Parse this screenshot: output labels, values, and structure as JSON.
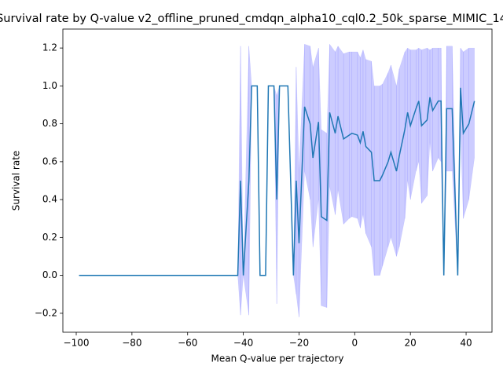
{
  "chart_data": {
    "type": "line",
    "title": "Survival rate by Q-value v2_offline_pruned_cmdqn_alpha10_cql0.2_50k_sparse_MIMIC_14",
    "xlabel": "Mean Q-value per trajectory",
    "ylabel": "Survival rate",
    "xlim": [
      -104.8,
      49.3
    ],
    "ylim": [
      -0.3,
      1.3
    ],
    "xticks": [
      {
        "value": -100,
        "label": "−100"
      },
      {
        "value": -80,
        "label": "−80"
      },
      {
        "value": -60,
        "label": "−60"
      },
      {
        "value": -40,
        "label": "−40"
      },
      {
        "value": -20,
        "label": "−20"
      },
      0,
      20,
      40
    ],
    "yticks": [
      {
        "value": -0.2,
        "label": "−0.2"
      },
      {
        "value": 0,
        "label": "0.0"
      },
      0.2,
      0.4,
      0.6,
      0.8,
      {
        "value": 1,
        "label": "1.0"
      },
      1.2
    ],
    "x": [
      -99,
      -42,
      -41,
      -40,
      -38,
      -37,
      -35,
      -34,
      -32,
      -31,
      -29,
      -28,
      -27,
      -24,
      -22,
      -21,
      -20,
      -18,
      -16,
      -15,
      -13,
      -12,
      -10,
      -9,
      -7,
      -6,
      -4,
      -2,
      -1,
      1,
      2,
      3,
      4,
      6,
      7,
      9,
      10,
      12,
      13,
      15,
      16,
      18,
      19,
      20,
      22,
      23,
      24,
      26,
      27,
      28,
      30,
      31,
      32,
      33,
      35,
      37,
      38,
      39,
      41,
      43
    ],
    "series": [
      {
        "color": "#1f77b4",
        "values": [
          0,
          0,
          0.5,
          0,
          0.5,
          1,
          1,
          0,
          0,
          1,
          1,
          0.4,
          1,
          1,
          0,
          0.5,
          0.17,
          0.89,
          0.8,
          0.62,
          0.81,
          0.31,
          0.29,
          0.86,
          0.75,
          0.84,
          0.72,
          0.74,
          0.75,
          0.74,
          0.7,
          0.76,
          0.68,
          0.65,
          0.5,
          0.5,
          0.53,
          0.6,
          0.65,
          0.55,
          0.63,
          0.77,
          0.86,
          0.79,
          0.88,
          0.92,
          0.79,
          0.82,
          0.94,
          0.87,
          0.92,
          0.92,
          0,
          0.88,
          0.88,
          0,
          0.99,
          0.75,
          0.8,
          0.92
        ],
        "band_color": "#0000ff",
        "lower": [
          0,
          0,
          -0.21,
          0,
          -0.21,
          1,
          1,
          0,
          0,
          1,
          1,
          -0.15,
          1,
          1,
          0,
          -0.1,
          -0.22,
          0.55,
          0.4,
          0.15,
          0.4,
          -0.16,
          -0.17,
          0.47,
          0.32,
          0.45,
          0.27,
          0.3,
          0.31,
          0.3,
          0.25,
          0.32,
          0.22,
          0.15,
          0,
          0,
          0.05,
          0.15,
          0.2,
          0.1,
          0.15,
          0.3,
          0.5,
          0.4,
          0.55,
          0.6,
          0.38,
          0.42,
          0.7,
          0.55,
          0.62,
          0.6,
          0,
          0.55,
          0.55,
          0,
          0.77,
          0.3,
          0.4,
          0.62
        ],
        "upper": [
          0,
          0,
          1.21,
          0,
          1.21,
          1,
          1,
          0,
          0,
          1,
          1,
          0.95,
          1,
          1,
          0,
          1.1,
          0.56,
          1.22,
          1.21,
          1.1,
          1.2,
          0.77,
          0.75,
          1.22,
          1.18,
          1.21,
          1.17,
          1.18,
          1.18,
          1.18,
          1.15,
          1.19,
          1.14,
          1.13,
          1,
          1,
          1.01,
          1.07,
          1.11,
          1,
          1.09,
          1.18,
          1.2,
          1.19,
          1.19,
          1.2,
          1.19,
          1.2,
          1.19,
          1.2,
          1.2,
          1.2,
          0,
          1.21,
          1.21,
          0,
          1.2,
          1.18,
          1.2,
          1.2
        ]
      }
    ]
  }
}
